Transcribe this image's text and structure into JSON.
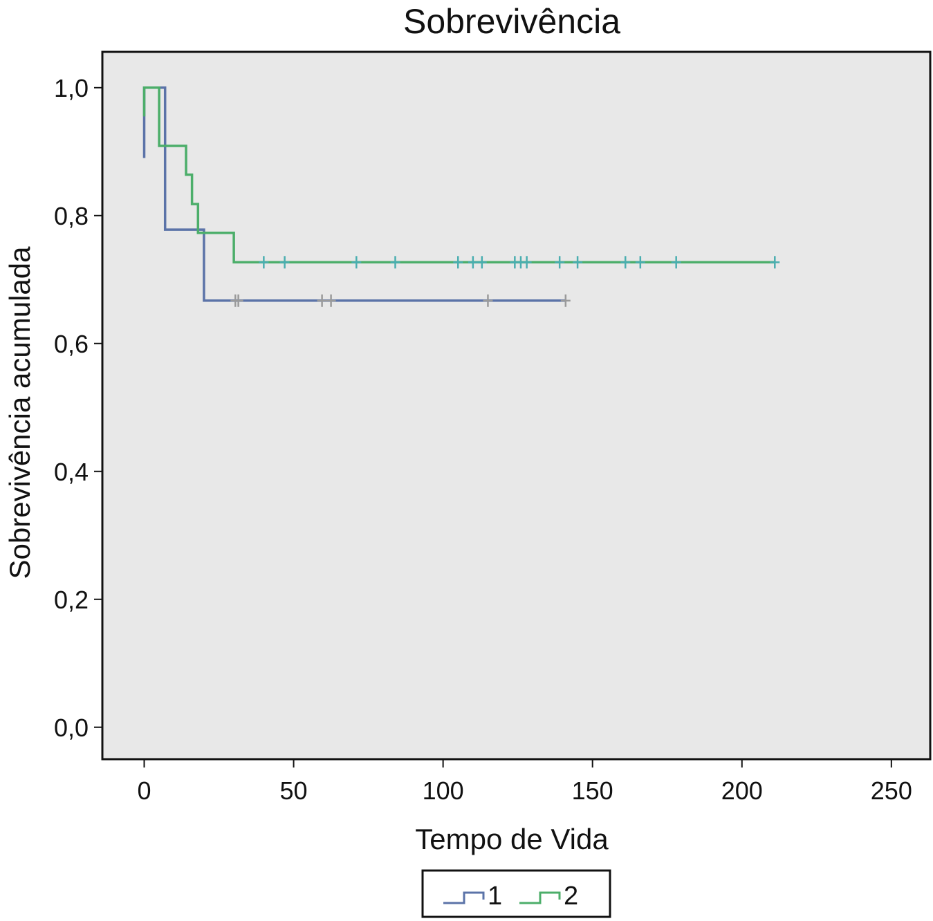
{
  "chart_data": {
    "type": "line",
    "step": true,
    "title": "Sobrevivência",
    "xlabel": "Tempo de Vida",
    "ylabel": "Sobrevivência acumulada",
    "xlim": [
      -14,
      263
    ],
    "ylim": [
      -0.05,
      1.056
    ],
    "xticks": [
      0,
      50,
      100,
      150,
      200,
      250
    ],
    "xtick_labels": [
      "0",
      "50",
      "100",
      "150",
      "200",
      "250"
    ],
    "yticks": [
      0.0,
      0.2,
      0.4,
      0.6,
      0.8,
      1.0
    ],
    "ytick_labels": [
      "0,0",
      "0,2",
      "0,4",
      "0,6",
      "0,8",
      "1,0"
    ],
    "background": "#e8e8e8",
    "grid": false,
    "legend_position": "bottom-center",
    "series": [
      {
        "name": "1",
        "color": "#5b73a8",
        "censor_color": "#9a9a9a",
        "steps": [
          [
            0,
            0.89
          ],
          [
            0,
            1.0
          ],
          [
            7,
            1.0
          ],
          [
            7,
            0.778
          ],
          [
            20,
            0.778
          ],
          [
            20,
            0.667
          ],
          [
            141,
            0.667
          ]
        ],
        "censored_x": [
          30.5,
          31.5,
          59.5,
          62.5,
          115,
          141
        ],
        "censored_y": 0.667
      },
      {
        "name": "2",
        "color": "#4cae6a",
        "censor_color": "#4aaeb0",
        "steps": [
          [
            0,
            0.955
          ],
          [
            0,
            1.0
          ],
          [
            5,
            1.0
          ],
          [
            5,
            0.909
          ],
          [
            14,
            0.909
          ],
          [
            14,
            0.864
          ],
          [
            16,
            0.864
          ],
          [
            16,
            0.818
          ],
          [
            18,
            0.818
          ],
          [
            18,
            0.773
          ],
          [
            30,
            0.773
          ],
          [
            30,
            0.727
          ],
          [
            211,
            0.727
          ]
        ],
        "censored_x": [
          40,
          47,
          71,
          84,
          105,
          110,
          113,
          124,
          126,
          128,
          139,
          145,
          161,
          166,
          178,
          211
        ],
        "censored_y": 0.727
      }
    ]
  }
}
